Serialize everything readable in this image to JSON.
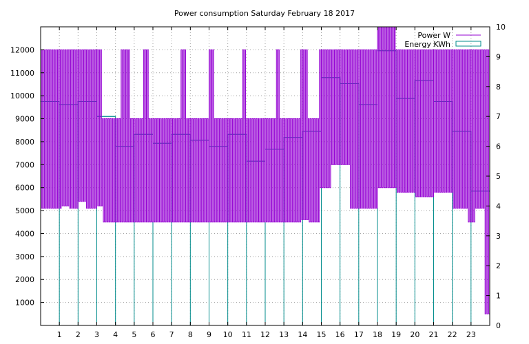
{
  "chart_data": {
    "type": "line",
    "title": "Power consumption Saturday February 18 2017",
    "xlim": [
      0,
      24
    ],
    "x_ticks": [
      1,
      2,
      3,
      4,
      5,
      6,
      7,
      8,
      9,
      10,
      11,
      12,
      13,
      14,
      15,
      16,
      17,
      18,
      19,
      20,
      21,
      22,
      23
    ],
    "y_left": {
      "lim": [
        0,
        13000
      ],
      "ticks": [
        1000,
        2000,
        3000,
        4000,
        5000,
        6000,
        7000,
        8000,
        9000,
        10000,
        11000,
        12000
      ]
    },
    "y_right": {
      "lim": [
        0,
        10
      ],
      "ticks": [
        0,
        1,
        2,
        3,
        4,
        5,
        6,
        7,
        8,
        9,
        10
      ]
    },
    "grid": true,
    "legend_position": "top-right",
    "series": [
      {
        "name": "Power W",
        "axis": "left",
        "color": "#9400d3",
        "style": "steps",
        "bands": [
          {
            "start": 0.0,
            "end": 1.1,
            "low": 5100,
            "high": 12000
          },
          {
            "start": 1.1,
            "end": 1.5,
            "low": 5200,
            "high": 12000
          },
          {
            "start": 1.5,
            "end": 2.0,
            "low": 5100,
            "high": 12000
          },
          {
            "start": 2.0,
            "end": 2.4,
            "low": 5400,
            "high": 12000
          },
          {
            "start": 2.4,
            "end": 3.0,
            "low": 5100,
            "high": 12000
          },
          {
            "start": 3.0,
            "end": 3.3,
            "low": 5200,
            "high": 12000
          },
          {
            "start": 3.3,
            "end": 4.3,
            "low": 4500,
            "high": 9000
          },
          {
            "start": 4.3,
            "end": 4.8,
            "low": 4500,
            "high": 12000
          },
          {
            "start": 4.8,
            "end": 5.5,
            "low": 4500,
            "high": 9000
          },
          {
            "start": 5.5,
            "end": 5.8,
            "low": 4500,
            "high": 12000
          },
          {
            "start": 5.8,
            "end": 7.5,
            "low": 4500,
            "high": 9000
          },
          {
            "start": 7.5,
            "end": 7.8,
            "low": 4500,
            "high": 12000
          },
          {
            "start": 7.8,
            "end": 9.0,
            "low": 4500,
            "high": 9000
          },
          {
            "start": 9.0,
            "end": 9.3,
            "low": 4500,
            "high": 12000
          },
          {
            "start": 9.3,
            "end": 10.8,
            "low": 4500,
            "high": 9000
          },
          {
            "start": 10.8,
            "end": 11.0,
            "low": 4500,
            "high": 12000
          },
          {
            "start": 11.0,
            "end": 12.6,
            "low": 4500,
            "high": 9000
          },
          {
            "start": 12.6,
            "end": 12.8,
            "low": 4500,
            "high": 12000
          },
          {
            "start": 12.8,
            "end": 13.9,
            "low": 4500,
            "high": 9000
          },
          {
            "start": 13.9,
            "end": 14.3,
            "low": 4600,
            "high": 12000
          },
          {
            "start": 14.3,
            "end": 14.9,
            "low": 4500,
            "high": 9000
          },
          {
            "start": 14.9,
            "end": 15.5,
            "low": 6000,
            "high": 12000
          },
          {
            "start": 15.5,
            "end": 16.5,
            "low": 7000,
            "high": 12000
          },
          {
            "start": 16.5,
            "end": 17.0,
            "low": 5100,
            "high": 12000
          },
          {
            "start": 17.0,
            "end": 18.0,
            "low": 5100,
            "high": 12000
          },
          {
            "start": 18.0,
            "end": 19.0,
            "low": 6000,
            "high": 13000
          },
          {
            "start": 19.0,
            "end": 20.0,
            "low": 5800,
            "high": 12000
          },
          {
            "start": 20.0,
            "end": 21.0,
            "low": 5600,
            "high": 12000
          },
          {
            "start": 21.0,
            "end": 22.0,
            "low": 5800,
            "high": 12000
          },
          {
            "start": 22.0,
            "end": 22.8,
            "low": 5100,
            "high": 12000
          },
          {
            "start": 22.8,
            "end": 23.2,
            "low": 4500,
            "high": 12000
          },
          {
            "start": 23.2,
            "end": 23.7,
            "low": 5100,
            "high": 12000
          },
          {
            "start": 23.7,
            "end": 24.0,
            "low": 500,
            "high": 12000
          }
        ]
      },
      {
        "name": "Energy KWh",
        "axis": "right",
        "color": "#008b8b",
        "style": "histeps",
        "x": [
          0,
          1,
          2,
          3,
          4,
          5,
          6,
          7,
          8,
          9,
          10,
          11,
          12,
          13,
          14,
          15,
          16,
          17,
          18,
          19,
          20,
          21,
          22,
          23
        ],
        "values": [
          7.5,
          7.4,
          7.5,
          7.0,
          6.0,
          6.4,
          6.1,
          6.4,
          6.2,
          6.0,
          6.4,
          5.5,
          5.9,
          6.3,
          6.5,
          8.3,
          8.1,
          7.4,
          9.2,
          7.6,
          8.2,
          7.5,
          6.5,
          4.5
        ]
      }
    ]
  }
}
